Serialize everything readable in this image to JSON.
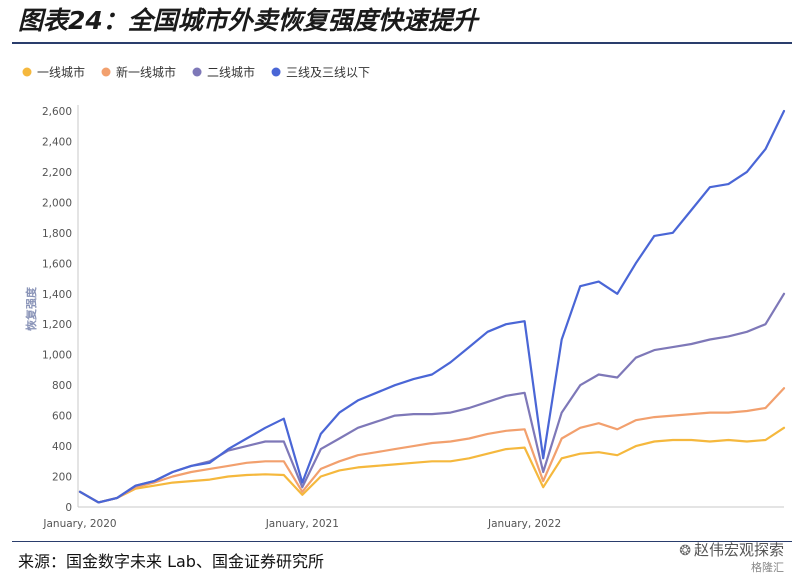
{
  "title": "图表24：全国城市外卖恢复强度快速提升",
  "source": "来源：国金数字未来 Lab、国金证券研究所",
  "watermark": "赵伟宏观探索",
  "watermark_sub": "格隆汇",
  "chart_data": {
    "type": "line",
    "title": "",
    "xlabel": "",
    "ylabel": "恢复强度",
    "ylim": [
      0,
      2600
    ],
    "yticks": [
      0,
      200,
      400,
      600,
      800,
      1000,
      1200,
      1400,
      1600,
      1800,
      2000,
      2200,
      2400,
      2600
    ],
    "ytick_labels": [
      "0",
      "200",
      "400",
      "600",
      "800",
      "1,000",
      "1,200",
      "1,400",
      "1,600",
      "1,800",
      "2,000",
      "2,200",
      "2,400",
      "2,600"
    ],
    "x_tick_labels": [
      {
        "label": "January, 2020",
        "x": "2020-01"
      },
      {
        "label": "January, 2021",
        "x": "2021-01"
      },
      {
        "label": "January, 2022",
        "x": "2022-01"
      }
    ],
    "x": [
      "2020-01",
      "2020-02",
      "2020-03",
      "2020-04",
      "2020-05",
      "2020-06",
      "2020-07",
      "2020-08",
      "2020-09",
      "2020-10",
      "2020-11",
      "2020-12",
      "2021-01",
      "2021-02",
      "2021-03",
      "2021-04",
      "2021-05",
      "2021-06",
      "2021-07",
      "2021-08",
      "2021-09",
      "2021-10",
      "2021-11",
      "2021-12",
      "2022-01",
      "2022-02",
      "2022-03",
      "2022-04",
      "2022-05",
      "2022-06",
      "2022-07",
      "2022-08",
      "2022-09",
      "2022-10",
      "2022-11",
      "2022-12",
      "2023-01",
      "2023-02",
      "2023-03"
    ],
    "legend_position": "top",
    "grid": false,
    "colors": {
      "tier1": "#f5b83d",
      "new_tier1": "#f2a06e",
      "tier2": "#7e78b8",
      "tier3": "#4a66d6"
    },
    "series": [
      {
        "name": "一线城市",
        "color": "#f5b83d",
        "values": [
          100,
          30,
          60,
          120,
          140,
          160,
          170,
          180,
          200,
          210,
          215,
          210,
          80,
          200,
          240,
          260,
          270,
          280,
          290,
          300,
          300,
          320,
          350,
          380,
          390,
          130,
          320,
          350,
          360,
          340,
          400,
          430,
          440,
          440,
          430,
          440,
          430,
          440,
          520
        ]
      },
      {
        "name": "新一线城市",
        "color": "#f2a06e",
        "values": [
          100,
          30,
          60,
          130,
          160,
          200,
          230,
          250,
          270,
          290,
          300,
          300,
          100,
          250,
          300,
          340,
          360,
          380,
          400,
          420,
          430,
          450,
          480,
          500,
          510,
          170,
          450,
          520,
          550,
          510,
          570,
          590,
          600,
          610,
          620,
          620,
          630,
          650,
          780
        ]
      },
      {
        "name": "二线城市",
        "color": "#7e78b8",
        "values": [
          100,
          30,
          60,
          140,
          170,
          230,
          270,
          300,
          370,
          400,
          430,
          430,
          130,
          380,
          450,
          520,
          560,
          600,
          610,
          610,
          620,
          650,
          690,
          730,
          750,
          230,
          620,
          800,
          870,
          850,
          980,
          1030,
          1050,
          1070,
          1100,
          1120,
          1150,
          1200,
          1400
        ]
      },
      {
        "name": "三线及三线以下",
        "color": "#4a66d6",
        "values": [
          100,
          30,
          60,
          140,
          170,
          230,
          270,
          290,
          380,
          450,
          520,
          580,
          160,
          480,
          620,
          700,
          750,
          800,
          840,
          870,
          950,
          1050,
          1150,
          1200,
          1220,
          320,
          1100,
          1450,
          1480,
          1400,
          1600,
          1780,
          1800,
          1950,
          2100,
          2120,
          2200,
          2350,
          2600
        ]
      }
    ]
  }
}
